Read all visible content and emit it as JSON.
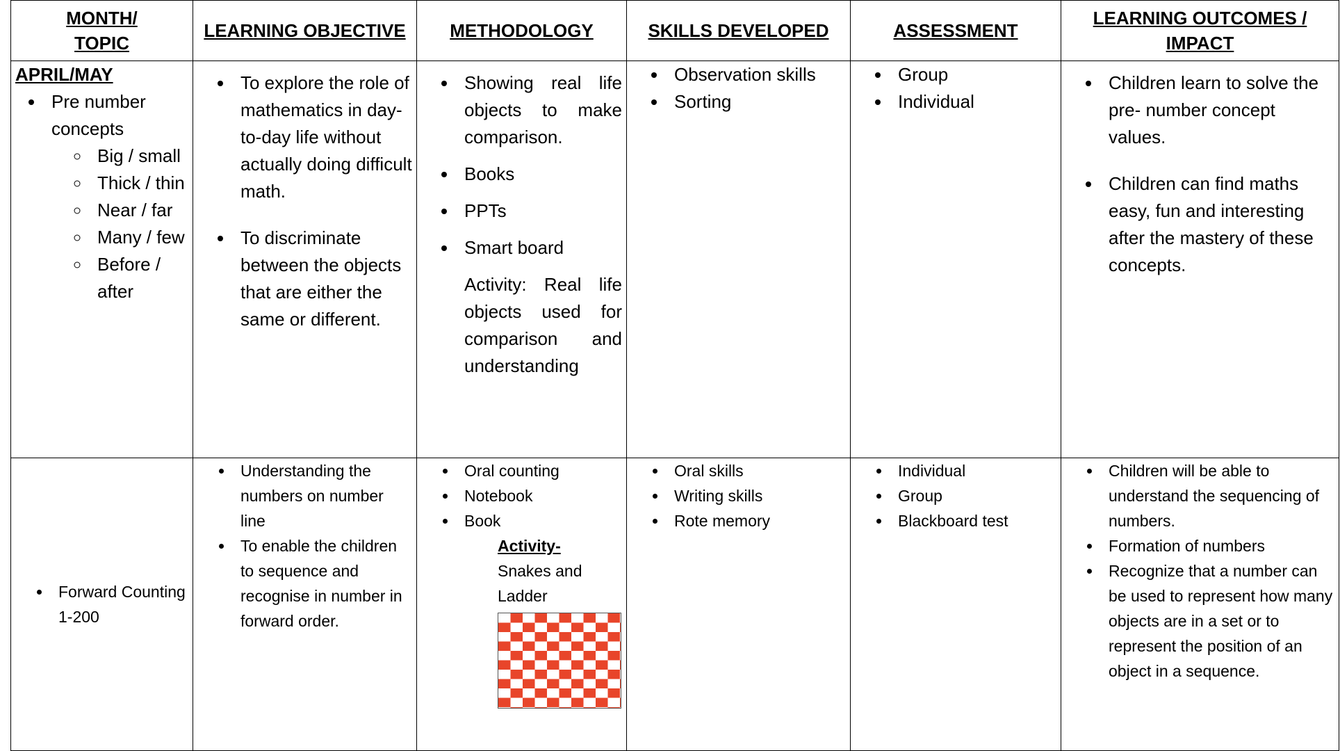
{
  "table": {
    "headers": [
      "MONTH/\nTOPIC",
      "LEARNING OBJECTIVE",
      "METHODOLOGY",
      "SKILLS DEVELOPED",
      "ASSESSMENT",
      "LEARNING OUTCOMES /\nIMPACT"
    ],
    "rows": [
      [
        {
          "heading": "APRIL/MAY",
          "bullets": [
            "Pre number concepts"
          ],
          "sub_bullets": [
            "Big / small",
            "Thick / thin",
            "Near / far",
            "Many / few",
            "Before / after"
          ]
        },
        {
          "bullets": [
            "To explore the role of mathematics in day-to-day life without actually doing difficult math.",
            "To discriminate between the objects that are either the same or different."
          ]
        },
        {
          "bullets": [
            "Showing real life objects to make comparison.",
            "Books",
            "PPTs",
            "Smart board"
          ],
          "text": "Activity: Real life objects used for comparison and understanding"
        },
        {
          "bullets": [
            "Observation skills",
            "Sorting"
          ]
        },
        {
          "bullets": [
            "Group",
            "Individual"
          ]
        },
        {
          "bullets": [
            "Children learn to solve the pre- number concept values.",
            "Children can find maths easy, fun and interesting after the mastery of these concepts."
          ]
        }
      ],
      [
        {
          "bullets": [
            "Forward Counting 1-200"
          ]
        },
        {
          "bullets": [
            "Understanding the numbers on number line",
            "To enable the children to sequence and recognise in number in forward order."
          ]
        },
        {
          "bullets": [
            "Oral counting",
            "Notebook",
            "Book"
          ],
          "activity_heading": "Activity-",
          "activity_text": "Snakes and Ladder"
        },
        {
          "bullets": [
            "Oral skills",
            "Writing skills",
            "Rote memory"
          ]
        },
        {
          "bullets": [
            "Individual",
            "Group",
            "Blackboard test"
          ]
        },
        {
          "bullets": [
            "Children will be able to understand the sequencing of numbers.",
            "Formation of numbers",
            "Recognize that a number can be used to represent how many objects are in a set or to represent the position of an object in a sequence."
          ]
        }
      ]
    ]
  }
}
